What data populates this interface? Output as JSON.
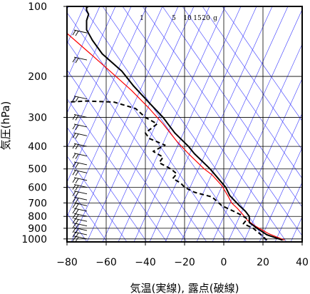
{
  "chart_data": {
    "type": "line",
    "subtype": "skew-T emagram (temperature and dew point vs pressure)",
    "xlabel": "気温(実線), 露点(破線)",
    "ylabel": "気圧(hPa)",
    "xlim": [
      -80,
      40
    ],
    "ylim": [
      1030,
      100
    ],
    "yscale": "log",
    "x_ticks": [
      "−80",
      "−60",
      "−40",
      "−20",
      "0",
      "20",
      "40"
    ],
    "y_ticks": [
      "100",
      "200",
      "300",
      "400",
      "500",
      "600",
      "700",
      "800",
      "900",
      "1000"
    ],
    "grid": true,
    "mixing_ratio_labels": [
      "1",
      "5",
      "10",
      "15",
      "20",
      "g"
    ],
    "colors": {
      "temperature": "#000000",
      "dewpoint": "#000000",
      "reference_profile": "#ff0000",
      "background_lines": "#3a3aff",
      "grid": "#000000",
      "wind_barbs": "#000000"
    },
    "series": [
      {
        "key": "temperature",
        "style": "solid",
        "points": [
          [
            30,
            1013
          ],
          [
            22,
            960
          ],
          [
            17,
            900
          ],
          [
            13,
            850
          ],
          [
            13,
            800
          ],
          [
            11,
            760
          ],
          [
            8,
            720
          ],
          [
            3,
            650
          ],
          [
            1,
            600
          ],
          [
            -2,
            560
          ],
          [
            -7,
            500
          ],
          [
            -15,
            430
          ],
          [
            -18,
            400
          ],
          [
            -25,
            350
          ],
          [
            -31,
            300
          ],
          [
            -38,
            260
          ],
          [
            -46,
            220
          ],
          [
            -52,
            190
          ],
          [
            -62,
            160
          ],
          [
            -67,
            140
          ],
          [
            -70,
            126
          ],
          [
            -70,
            115
          ],
          [
            -69,
            108
          ],
          [
            -70,
            104
          ],
          [
            -70,
            101
          ],
          [
            -68,
            99
          ]
        ]
      },
      {
        "key": "dewpoint",
        "style": "dashed",
        "points": [
          [
            22,
            1013
          ],
          [
            19,
            960
          ],
          [
            15,
            900
          ],
          [
            10,
            860
          ],
          [
            12,
            820
          ],
          [
            9,
            790
          ],
          [
            5,
            760
          ],
          [
            -1,
            720
          ],
          [
            -6,
            660
          ],
          [
            -15,
            630
          ],
          [
            -20,
            600
          ],
          [
            -22,
            575
          ],
          [
            -26,
            550
          ],
          [
            -24,
            525
          ],
          [
            -27,
            500
          ],
          [
            -33,
            470
          ],
          [
            -31,
            445
          ],
          [
            -36,
            420
          ],
          [
            -30,
            395
          ],
          [
            -38,
            370
          ],
          [
            -40,
            350
          ],
          [
            -34,
            320
          ],
          [
            -40,
            300
          ],
          [
            -45,
            275
          ],
          [
            -56,
            258
          ],
          [
            -70,
            255
          ],
          [
            -80,
            258
          ]
        ]
      },
      {
        "key": "reference_profile",
        "style": "solid",
        "points": [
          [
            31,
            1013
          ],
          [
            23,
            950
          ],
          [
            16,
            880
          ],
          [
            12,
            830
          ],
          [
            10,
            790
          ],
          [
            7,
            740
          ],
          [
            4,
            700
          ],
          [
            2,
            650
          ],
          [
            -1,
            590
          ],
          [
            -6,
            530
          ],
          [
            -10,
            500
          ],
          [
            -18,
            430
          ],
          [
            -24,
            380
          ],
          [
            -31,
            320
          ],
          [
            -38,
            275
          ],
          [
            -47,
            230
          ],
          [
            -58,
            190
          ],
          [
            -68,
            160
          ],
          [
            -78,
            135
          ],
          [
            -85,
            120
          ]
        ]
      }
    ],
    "wind_barbs_pressures": [
      130,
      170,
      250,
      300,
      330,
      360,
      400,
      440,
      480,
      520,
      560,
      600,
      640,
      680,
      720,
      760,
      800,
      840,
      880,
      920,
      960,
      1000
    ]
  }
}
